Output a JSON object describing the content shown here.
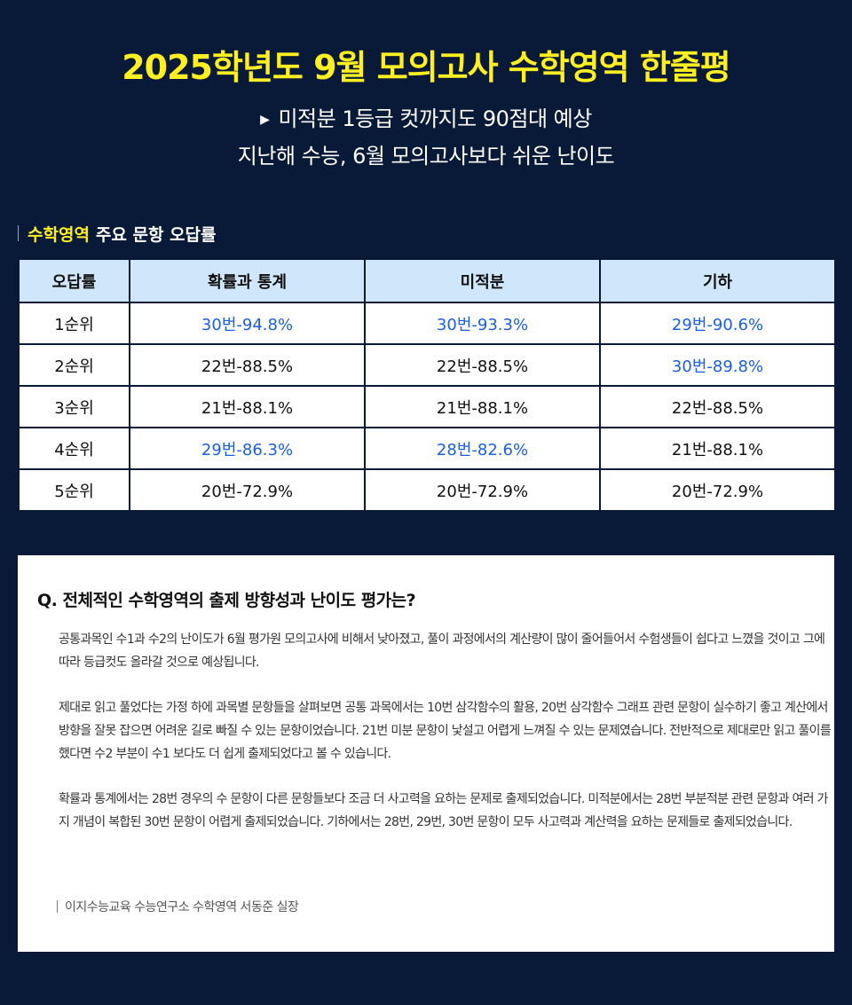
{
  "header": {
    "title": "2025학년도 9월 모의고사 수학영역 한줄평",
    "subtitle_line1": "미적분 1등급 컷까지도 90점대 예상",
    "subtitle_line2": "지난해 수능, 6월 모의고사보다 쉬운 난이도"
  },
  "section": {
    "highlight": "수학영역",
    "rest": "주요 문항 오답률"
  },
  "table": {
    "headers": [
      "오답률",
      "확률과 통계",
      "미적분",
      "기하"
    ],
    "rows": [
      {
        "rank": "1순위",
        "cells": [
          "30번-94.8%",
          "30번-93.3%",
          "29번-90.6%"
        ]
      },
      {
        "rank": "2순위",
        "cells": [
          "22번-88.5%",
          "22번-88.5%",
          "30번-89.8%"
        ]
      },
      {
        "rank": "3순위",
        "cells": [
          "21번-88.1%",
          "21번-88.1%",
          "22번-88.5%"
        ]
      },
      {
        "rank": "4순위",
        "cells": [
          "29번-86.3%",
          "28번-82.6%",
          "21번-88.1%"
        ]
      },
      {
        "rank": "5순위",
        "cells": [
          "20번-72.9%",
          "20번-72.9%",
          "20번-72.9%"
        ]
      }
    ],
    "highlight_color": "#1a5ee6"
  },
  "qa": {
    "question": "Q. 전체적인 수학영역의 출제 방향성과 난이도 평가는?",
    "paragraphs": [
      "공통과목인 수1과 수2의 난이도가 6월 평가원 모의고사에 비해서 낮아졌고, 풀이 과정에서의 계산량이 많이 줄어들어서 수험생들이 쉽다고 느꼈을 것이고 그에 따라 등급컷도 올라갈 것으로 예상됩니다.",
      "제대로 읽고 풀었다는 가정 하에 과목별 문항들을 살펴보면 공통 과목에서는 10번 삼각함수의 활용, 20번 삼각함수 그래프 관련 문항이 실수하기 좋고 계산에서 방향을 잘못 잡으면 어려운 길로 빠질 수 있는 문항이었습니다. 21번 미분 문항이 낯설고 어렵게 느껴질 수 있는 문제였습니다. 전반적으로 제대로만 읽고 풀이를 했다면 수2 부분이 수1 보다도 더 쉽게 출제되었다고 볼 수 있습니다.",
      "확률과 통계에서는 28번 경우의 수 문항이 다른 문항들보다 조금 더 사고력을 요하는 문제로 출제되었습니다. 미적분에서는 28번 부분적분 관련 문항과 여러 가지 개념이 복합된 30번 문항이 어렵게 출제되었습니다. 기하에서는 28번, 29번, 30번 문항이 모두 사고력과 계산력을 요하는 문제들로 출제되었습니다."
    ],
    "author": "이지수능교육 수능연구소 수학영역 서동준 실장"
  }
}
